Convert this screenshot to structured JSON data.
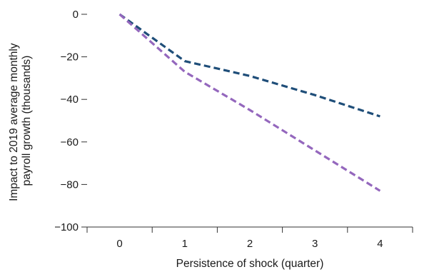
{
  "chart_data": {
    "type": "line",
    "title": "",
    "xlabel": "Persistence of shock (quarter)",
    "ylabel_lines": [
      "Impact to 2019 average monthly",
      "payroll growth (thousands)"
    ],
    "x": [
      0,
      1,
      2,
      3,
      4
    ],
    "x_tick_labels": [
      "0",
      "1",
      "2",
      "3",
      "4"
    ],
    "xlim": [
      -0.5,
      4.5
    ],
    "ylim": [
      -100,
      0
    ],
    "y_ticks": [
      0,
      -20,
      -40,
      -60,
      -80,
      -100
    ],
    "y_tick_labels": [
      "0",
      "−20",
      "−40",
      "−60",
      "−80",
      "−100"
    ],
    "grid": false,
    "legend": "none",
    "series": [
      {
        "color": "#1f4e79",
        "values": [
          0,
          -22,
          -29,
          -38,
          -48
        ]
      },
      {
        "color": "#9467bd",
        "values": [
          0,
          -27,
          -45,
          -64,
          -83
        ]
      }
    ]
  }
}
